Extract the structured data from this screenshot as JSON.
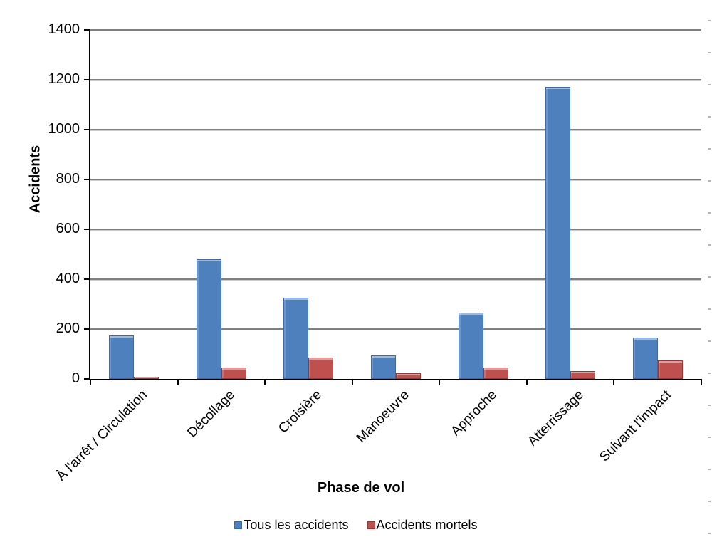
{
  "chart_data": {
    "type": "bar",
    "title": "",
    "xlabel": "Phase de vol",
    "ylabel": "Accidents",
    "categories": [
      "À l'arrêt / Circulation",
      "Décollage",
      "Croisière",
      "Manoeuvre",
      "Approche",
      "Atterrissage",
      "Suivant l'impact"
    ],
    "series": [
      {
        "name": "Tous les accidents",
        "color": "#4d80bd",
        "border_color": "#3a69a8",
        "values": [
          175,
          480,
          325,
          95,
          265,
          1170,
          165
        ]
      },
      {
        "name": "Accidents mortels",
        "color": "#c0504d",
        "border_color": "#953735",
        "values": [
          8,
          45,
          85,
          22,
          45,
          30,
          75
        ]
      }
    ],
    "ylim": [
      0,
      1400
    ],
    "ytick_interval": 200,
    "ytick_labels": [
      "0",
      "200",
      "400",
      "600",
      "800",
      "1000",
      "1200",
      "1400"
    ],
    "grid": true,
    "gridline_color": "#7f7f7f",
    "axis_color": "#000000",
    "legend_position": "bottom"
  }
}
